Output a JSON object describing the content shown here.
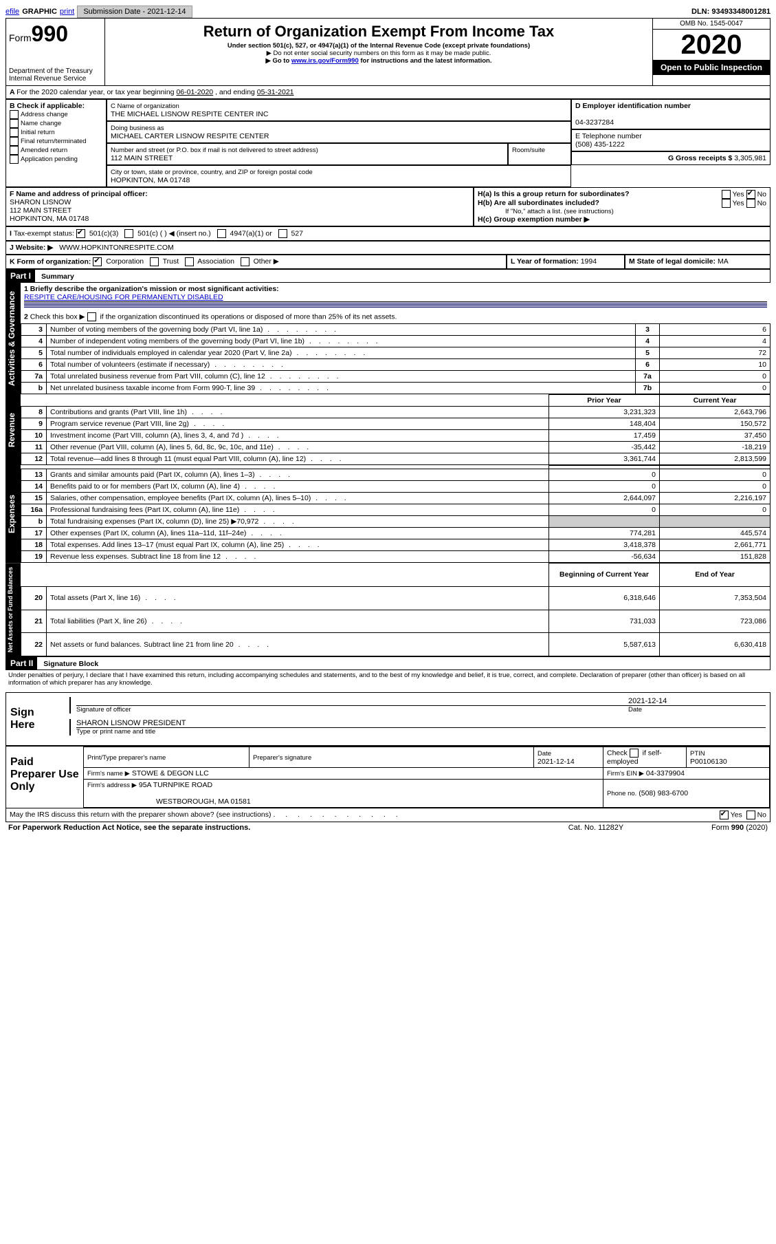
{
  "topbar": {
    "efile": "efile",
    "graphic": "GRAPHIC",
    "print": "print",
    "sub_date_label": "Submission Date - 2021-12-14",
    "dln": "DLN: 93493348001281"
  },
  "header": {
    "form_prefix": "Form",
    "form_number": "990",
    "dept": "Department of the Treasury",
    "irs": "Internal Revenue Service",
    "title": "Return of Organization Exempt From Income Tax",
    "subtitle": "Under section 501(c), 527, or 4947(a)(1) of the Internal Revenue Code (except private foundations)",
    "note1": "▶ Do not enter social security numbers on this form as it may be made public.",
    "note2_prefix": "▶ Go to ",
    "note2_link": "www.irs.gov/Form990",
    "note2_suffix": " for instructions and the latest information.",
    "omb": "OMB No. 1545-0047",
    "year": "2020",
    "open": "Open to Public Inspection"
  },
  "periodA": {
    "text_prefix": "For the 2020 calendar year, or tax year beginning ",
    "begin": "06-01-2020",
    "mid": " , and ending ",
    "end": "05-31-2021"
  },
  "boxB": {
    "label": "B Check if applicable:",
    "items": [
      "Address change",
      "Name change",
      "Initial return",
      "Final return/terminated",
      "Amended return",
      "Application pending"
    ]
  },
  "boxC": {
    "name_label": "C Name of organization",
    "name": "THE MICHAEL LISNOW RESPITE CENTER INC",
    "dba_label": "Doing business as",
    "dba": "MICHAEL CARTER LISNOW RESPITE CENTER",
    "addr_label": "Number and street (or P.O. box if mail is not delivered to street address)",
    "room_label": "Room/suite",
    "addr": "112 MAIN STREET",
    "city_label": "City or town, state or province, country, and ZIP or foreign postal code",
    "city": "HOPKINTON, MA  01748"
  },
  "boxD": {
    "label": "D Employer identification number",
    "value": "04-3237284"
  },
  "boxE": {
    "label": "E Telephone number",
    "value": "(508) 435-1222"
  },
  "boxG": {
    "label": "G Gross receipts $",
    "value": "3,305,981"
  },
  "boxF": {
    "label": "F Name and address of principal officer:",
    "name": "SHARON LISNOW",
    "addr1": "112 MAIN STREET",
    "addr2": "HOPKINTON, MA  01748"
  },
  "boxH": {
    "a_label": "H(a)  Is this a group return for subordinates?",
    "a_yes": "Yes",
    "a_no": "No",
    "b_label": "H(b)  Are all subordinates included?",
    "b_yes": "Yes",
    "b_no": "No",
    "b_note": "If \"No,\" attach a list. (see instructions)",
    "c_label": "H(c)  Group exemption number ▶"
  },
  "boxI": {
    "label": "Tax-exempt status:",
    "opt1": "501(c)(3)",
    "opt2": "501(c) (    ) ◀ (insert no.)",
    "opt3": "4947(a)(1) or",
    "opt4": "527"
  },
  "boxJ": {
    "label": "J    Website: ▶",
    "value": "WWW.HOPKINTONRESPITE.COM"
  },
  "boxK": {
    "label": "K Form of organization:",
    "opts": [
      "Corporation",
      "Trust",
      "Association",
      "Other ▶"
    ]
  },
  "boxL": {
    "label": "L Year of formation:",
    "value": "1994"
  },
  "boxM": {
    "label": "M State of legal domicile:",
    "value": "MA"
  },
  "part1": {
    "hdr": "Part I",
    "title": "Summary",
    "q1_label": "1  Briefly describe the organization's mission or most significant activities:",
    "q1_value": "RESPITE CARE/HOUSING FOR PERMANENTLY DISABLED",
    "q2_label": "Check this box ▶",
    "q2_text": "if the organization discontinued its operations or disposed of more than 25% of its net assets.",
    "tabs": {
      "gov": "Activities & Governance",
      "rev": "Revenue",
      "exp": "Expenses",
      "net": "Net Assets or Fund Balances"
    },
    "lines_gov": [
      {
        "n": "3",
        "t": "Number of voting members of the governing body (Part VI, line 1a)",
        "box": "3",
        "v": "6"
      },
      {
        "n": "4",
        "t": "Number of independent voting members of the governing body (Part VI, line 1b)",
        "box": "4",
        "v": "4"
      },
      {
        "n": "5",
        "t": "Total number of individuals employed in calendar year 2020 (Part V, line 2a)",
        "box": "5",
        "v": "72"
      },
      {
        "n": "6",
        "t": "Total number of volunteers (estimate if necessary)",
        "box": "6",
        "v": "10"
      },
      {
        "n": "7a",
        "t": "Total unrelated business revenue from Part VIII, column (C), line 12",
        "box": "7a",
        "v": "0"
      },
      {
        "n": "b",
        "t": "Net unrelated business taxable income from Form 990-T, line 39",
        "box": "7b",
        "v": "0"
      }
    ],
    "col_hdr_prior": "Prior Year",
    "col_hdr_current": "Current Year",
    "lines_rev": [
      {
        "n": "8",
        "t": "Contributions and grants (Part VIII, line 1h)",
        "p": "3,231,323",
        "c": "2,643,796"
      },
      {
        "n": "9",
        "t": "Program service revenue (Part VIII, line 2g)",
        "p": "148,404",
        "c": "150,572"
      },
      {
        "n": "10",
        "t": "Investment income (Part VIII, column (A), lines 3, 4, and 7d )",
        "p": "17,459",
        "c": "37,450"
      },
      {
        "n": "11",
        "t": "Other revenue (Part VIII, column (A), lines 5, 6d, 8c, 9c, 10c, and 11e)",
        "p": "-35,442",
        "c": "-18,219"
      },
      {
        "n": "12",
        "t": "Total revenue—add lines 8 through 11 (must equal Part VIII, column (A), line 12)",
        "p": "3,361,744",
        "c": "2,813,599"
      }
    ],
    "lines_exp": [
      {
        "n": "13",
        "t": "Grants and similar amounts paid (Part IX, column (A), lines 1–3)",
        "p": "0",
        "c": "0"
      },
      {
        "n": "14",
        "t": "Benefits paid to or for members (Part IX, column (A), line 4)",
        "p": "0",
        "c": "0"
      },
      {
        "n": "15",
        "t": "Salaries, other compensation, employee benefits (Part IX, column (A), lines 5–10)",
        "p": "2,644,097",
        "c": "2,216,197"
      },
      {
        "n": "16a",
        "t": "Professional fundraising fees (Part IX, column (A), line 11e)",
        "p": "0",
        "c": "0"
      },
      {
        "n": "b",
        "t": "Total fundraising expenses (Part IX, column (D), line 25) ▶70,972",
        "p": "",
        "c": "",
        "grey": true
      },
      {
        "n": "17",
        "t": "Other expenses (Part IX, column (A), lines 11a–11d, 11f–24e)",
        "p": "774,281",
        "c": "445,574"
      },
      {
        "n": "18",
        "t": "Total expenses. Add lines 13–17 (must equal Part IX, column (A), line 25)",
        "p": "3,418,378",
        "c": "2,661,771"
      },
      {
        "n": "19",
        "t": "Revenue less expenses. Subtract line 18 from line 12",
        "p": "-56,634",
        "c": "151,828"
      }
    ],
    "col_hdr_begin": "Beginning of Current Year",
    "col_hdr_end": "End of Year",
    "lines_net": [
      {
        "n": "20",
        "t": "Total assets (Part X, line 16)",
        "p": "6,318,646",
        "c": "7,353,504"
      },
      {
        "n": "21",
        "t": "Total liabilities (Part X, line 26)",
        "p": "731,033",
        "c": "723,086"
      },
      {
        "n": "22",
        "t": "Net assets or fund balances. Subtract line 21 from line 20",
        "p": "5,587,613",
        "c": "6,630,418"
      }
    ]
  },
  "part2": {
    "hdr": "Part II",
    "title": "Signature Block",
    "declaration": "Under penalties of perjury, I declare that I have examined this return, including accompanying schedules and statements, and to the best of my knowledge and belief, it is true, correct, and complete. Declaration of preparer (other than officer) is based on all information of which preparer has any knowledge."
  },
  "sign": {
    "here": "Sign Here",
    "sig_officer": "Signature of officer",
    "date_label": "Date",
    "date": "2021-12-14",
    "name": "SHARON LISNOW  PRESIDENT",
    "type_name": "Type or print name and title"
  },
  "paid": {
    "label": "Paid Preparer Use Only",
    "print_name_hdr": "Print/Type preparer's name",
    "sig_hdr": "Preparer's signature",
    "date_hdr": "Date",
    "date": "2021-12-14",
    "check_label": "Check",
    "self_emp": "if self-employed",
    "ptin_label": "PTIN",
    "ptin": "P00106130",
    "firm_name_label": "Firm's name     ▶",
    "firm_name": "STOWE & DEGON LLC",
    "firm_ein_label": "Firm's EIN ▶",
    "firm_ein": "04-3379904",
    "firm_addr_label": "Firm's address ▶",
    "firm_addr1": "95A TURNPIKE ROAD",
    "firm_addr2": "WESTBOROUGH, MA  01581",
    "phone_label": "Phone no.",
    "phone": "(508) 983-6700"
  },
  "footer": {
    "discuss": "May the IRS discuss this return with the preparer shown above? (see instructions)",
    "yes": "Yes",
    "no": "No",
    "paperwork": "For Paperwork Reduction Act Notice, see the separate instructions.",
    "cat": "Cat. No. 11282Y",
    "form": "Form 990 (2020)"
  }
}
